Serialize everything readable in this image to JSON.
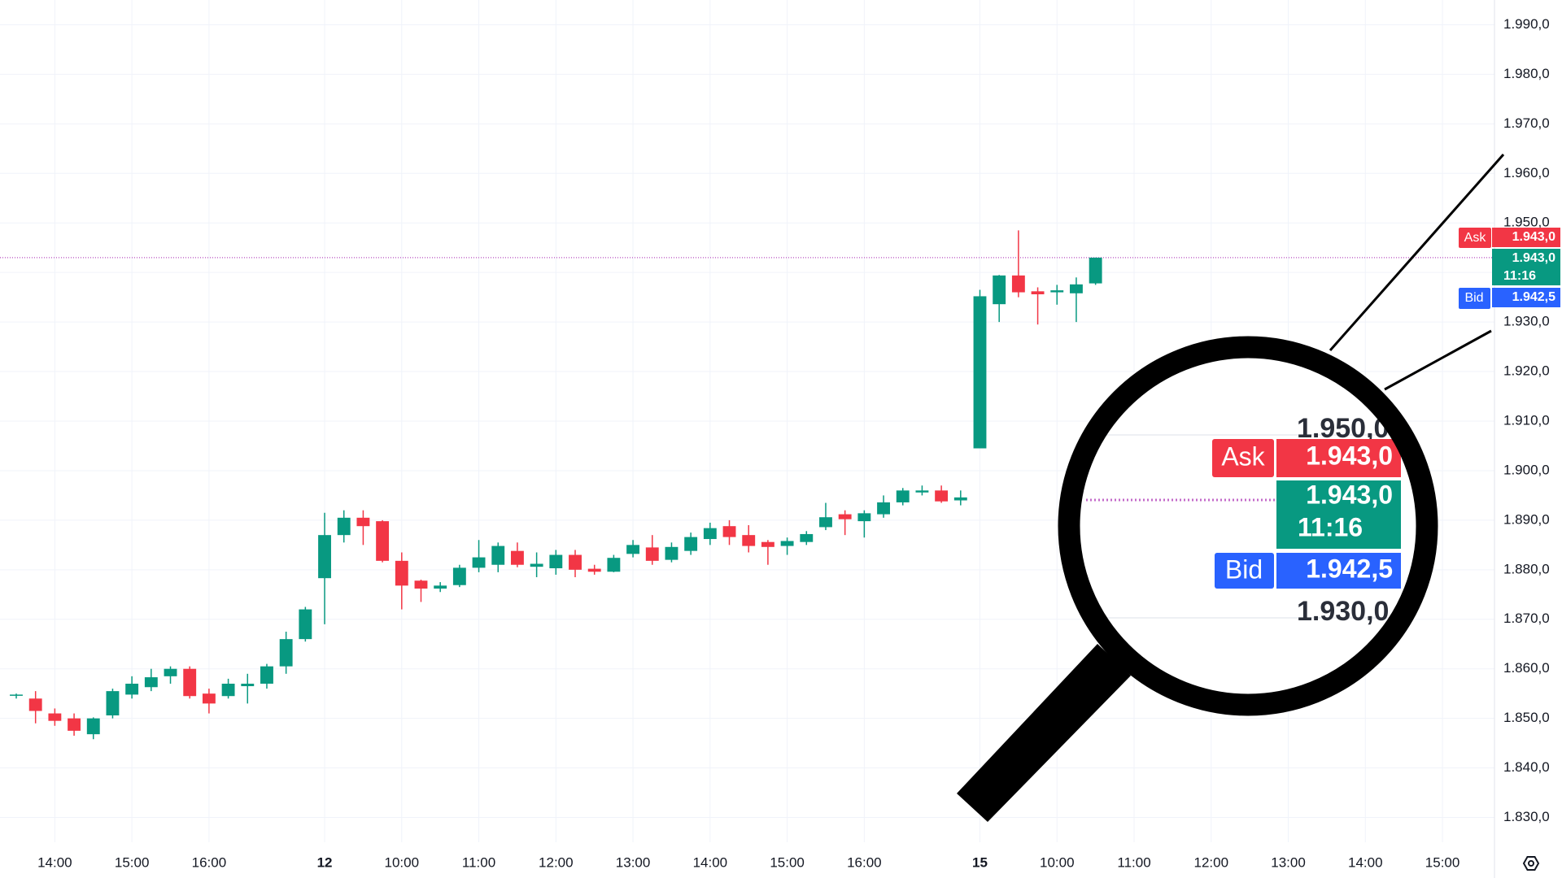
{
  "chart_data": {
    "type": "candlestick",
    "categories": [
      null,
      null,
      "14:00",
      null,
      null,
      null,
      "15:00",
      null,
      null,
      null,
      "16:00",
      null,
      null,
      null,
      null,
      null,
      "12",
      null,
      null,
      null,
      "10:00",
      null,
      null,
      null,
      "11:00",
      null,
      null,
      null,
      "12:00",
      null,
      null,
      null,
      "13:00",
      null,
      null,
      null,
      "14:00",
      null,
      null,
      null,
      "15:00",
      null,
      null,
      null,
      "16:00",
      null,
      null,
      null,
      null,
      null,
      "15",
      null,
      null,
      null,
      "10:00",
      null,
      null,
      null,
      "11:00",
      null,
      null,
      null,
      "12:00",
      null,
      null,
      null,
      "13:00",
      null,
      null,
      null,
      "14:00",
      null,
      null,
      null,
      "15:00",
      null,
      null
    ],
    "open": [
      1854.6,
      1854,
      1851,
      1850,
      1846.8,
      1850.6,
      1854.8,
      1856.3,
      1858.5,
      1860,
      1855,
      1854.5,
      1856.5,
      1857,
      1860.5,
      1866,
      1878.3,
      1887,
      1890.5,
      1889.8,
      1881.8,
      1877.8,
      1876.2,
      1876.9,
      1880.4,
      1881,
      1883.8,
      1880.6,
      1880.3,
      1883,
      1880.2,
      1879.6,
      1883.2,
      1884.5,
      1882,
      1883.8,
      1886.2,
      1888.8,
      1887,
      1885.6,
      1884.8,
      1885.6,
      1888.6,
      1891.2,
      1889.8,
      1891.2,
      1893.6,
      1895.6,
      1896,
      1894,
      1904.5,
      1933.6,
      1939.4,
      1936.2,
      1936,
      1935.8,
      1937.8,
      null,
      null,
      null,
      null,
      null,
      null,
      null,
      null,
      null,
      null,
      null,
      null,
      null,
      null,
      null,
      null,
      null,
      null,
      null,
      null
    ],
    "high": [
      1855,
      1855.5,
      1852,
      1851,
      1850.2,
      1856,
      1858.5,
      1860,
      1860.5,
      1860.5,
      1856,
      1858,
      1859,
      1861,
      1867.5,
      1872.5,
      1891.5,
      1892,
      1892,
      1890,
      1883.5,
      1878,
      1877.5,
      1881,
      1886,
      1885.5,
      1885.5,
      1883.5,
      1884,
      1884,
      1881,
      1883,
      1886,
      1887,
      1885.5,
      1887.5,
      1889.5,
      1890,
      1889,
      1886,
      1886.5,
      1887.8,
      1893.5,
      1892,
      1892,
      1895,
      1896.5,
      1897,
      1897,
      1896,
      1936.5,
      1939.5,
      1948.5,
      1937,
      1937.5,
      1939,
      1943,
      null,
      null,
      null,
      null,
      null,
      null,
      null,
      null,
      null,
      null,
      null,
      null,
      null,
      null,
      null,
      null,
      null,
      null,
      null,
      null
    ],
    "low": [
      1854,
      1849,
      1848.5,
      1846.5,
      1845.8,
      1850,
      1854,
      1855.5,
      1857,
      1854,
      1851,
      1854,
      1853,
      1856,
      1859,
      1865.5,
      1869,
      1885.5,
      1885,
      1881.5,
      1872,
      1873.5,
      1875.5,
      1876.5,
      1879.5,
      1879.5,
      1880.5,
      1878.5,
      1879,
      1878.5,
      1879,
      1879.5,
      1882.5,
      1881,
      1881.5,
      1883,
      1885,
      1885,
      1883.5,
      1881,
      1883,
      1885,
      1888,
      1887,
      1886.5,
      1890.5,
      1893,
      1895,
      1893.5,
      1893,
      1904.5,
      1930,
      1935,
      1929.5,
      1933.5,
      1930,
      1937.5,
      null,
      null,
      null,
      null,
      null,
      null,
      null,
      null,
      null,
      null,
      null,
      null,
      null,
      null,
      null,
      null,
      null,
      null,
      null,
      null
    ],
    "close": [
      1854.8,
      1851.5,
      1849.5,
      1847.5,
      1850,
      1855.5,
      1857,
      1858.3,
      1860,
      1854.5,
      1853,
      1857,
      1857,
      1860.5,
      1866,
      1872,
      1887,
      1890.5,
      1888.8,
      1881.8,
      1876.8,
      1876.2,
      1876.8,
      1880.4,
      1882.5,
      1884.8,
      1881,
      1881.2,
      1883,
      1880,
      1879.6,
      1882.4,
      1885,
      1881.8,
      1884.6,
      1886.6,
      1888.4,
      1886.6,
      1884.8,
      1884.6,
      1885.8,
      1887.2,
      1890.6,
      1890.2,
      1891.4,
      1893.6,
      1896,
      1896,
      1893.8,
      1894.6,
      1935.2,
      1939.4,
      1936,
      1935.6,
      1936.4,
      1937.6,
      1943,
      null,
      null,
      null,
      null,
      null,
      null,
      null,
      null,
      null,
      null,
      null,
      null,
      null,
      null,
      null,
      null,
      null,
      null,
      null,
      null
    ],
    "up_color": "#089981",
    "down_color": "#f23645",
    "price_line_color": "#c36ac9",
    "ylim": [
      1825,
      1995
    ],
    "yticks": [
      {
        "value": 1830,
        "label": "1.830,0"
      },
      {
        "value": 1840,
        "label": "1.840,0"
      },
      {
        "value": 1850,
        "label": "1.850,0"
      },
      {
        "value": 1860,
        "label": "1.860,0"
      },
      {
        "value": 1870,
        "label": "1.870,0"
      },
      {
        "value": 1880,
        "label": "1.880,0"
      },
      {
        "value": 1890,
        "label": "1.890,0"
      },
      {
        "value": 1900,
        "label": "1.900,0"
      },
      {
        "value": 1910,
        "label": "1.910,0"
      },
      {
        "value": 1920,
        "label": "1.920,0"
      },
      {
        "value": 1930,
        "label": "1.930,0"
      },
      {
        "value": 1940,
        "label": "1.940,0"
      },
      {
        "value": 1950,
        "label": "1.950,0"
      },
      {
        "value": 1960,
        "label": "1.960,0"
      },
      {
        "value": 1970,
        "label": "1.970,0"
      },
      {
        "value": 1980,
        "label": "1.980,0"
      },
      {
        "value": 1990,
        "label": "1.990,0"
      }
    ],
    "grid": true,
    "price_labels": {
      "ask_name": "Ask",
      "ask": "1.943,0",
      "last": "1.943,0",
      "countdown": "11:16",
      "bid_name": "Bid",
      "bid": "1.942,5"
    }
  },
  "magnifier": {
    "upper_tick": "1.950,0",
    "ask_name": "Ask",
    "ask": "1.943,0",
    "last": "1.943,0",
    "countdown": "11:16",
    "bid_name": "Bid",
    "bid": "1.942,5",
    "lower_tick": "1.930,0"
  }
}
